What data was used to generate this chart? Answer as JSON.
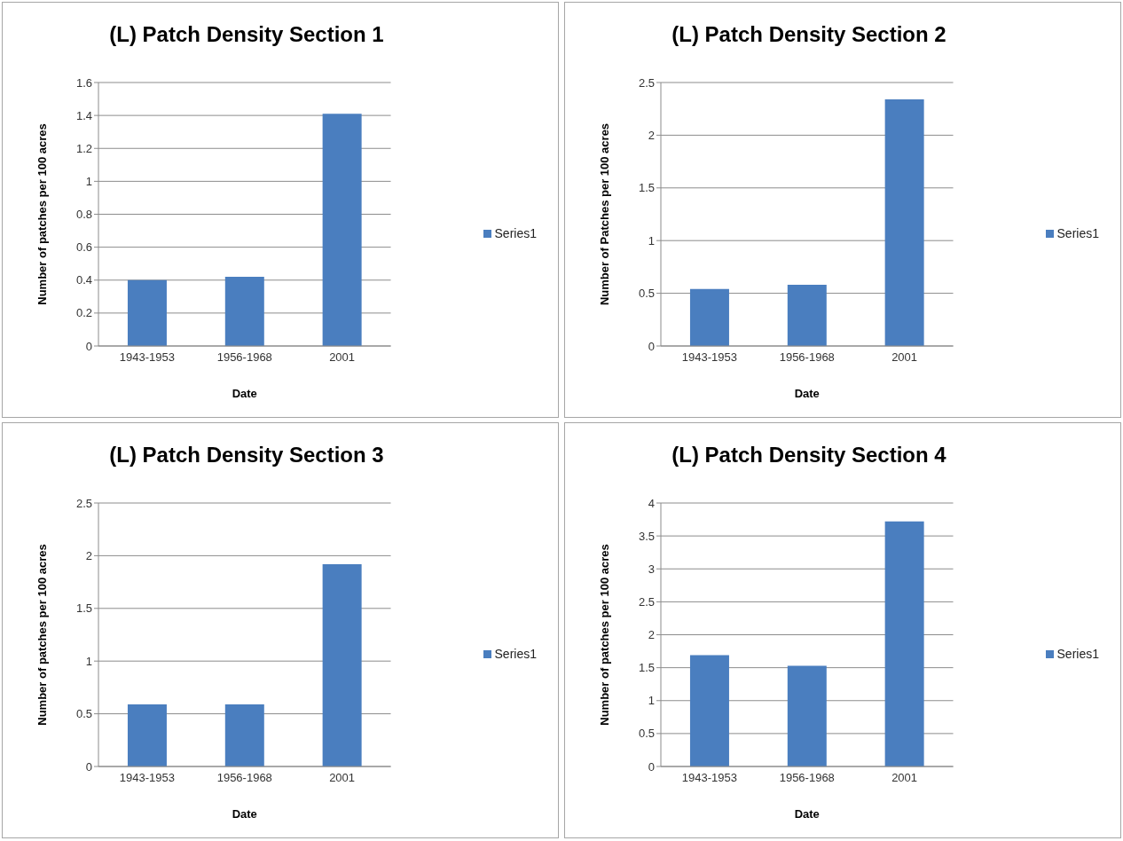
{
  "chart_data": [
    {
      "type": "bar",
      "title": "(L) Patch Density Section 1",
      "xlabel": "Date",
      "ylabel": "Number of patches per 100 acres",
      "categories": [
        "1943-1953",
        "1956-1968",
        "2001"
      ],
      "series": [
        {
          "name": "Series1",
          "color": "#4a7ebf",
          "values": [
            0.4,
            0.42,
            1.41
          ]
        }
      ],
      "ylim": [
        0,
        1.6
      ],
      "yticks": [
        0,
        0.2,
        0.4,
        0.6,
        0.8,
        1,
        1.2,
        1.4,
        1.6
      ],
      "grid": "y",
      "legend": "right"
    },
    {
      "type": "bar",
      "title": "(L) Patch Density Section 2",
      "xlabel": "Date",
      "ylabel": "Number of Patches per 100 acres",
      "categories": [
        "1943-1953",
        "1956-1968",
        "2001"
      ],
      "series": [
        {
          "name": "Series1",
          "color": "#4a7ebf",
          "values": [
            0.54,
            0.58,
            2.34
          ]
        }
      ],
      "ylim": [
        0,
        2.5
      ],
      "yticks": [
        0,
        0.5,
        1,
        1.5,
        2,
        2.5
      ],
      "grid": "y",
      "legend": "right"
    },
    {
      "type": "bar",
      "title": "(L) Patch Density Section 3",
      "xlabel": "Date",
      "ylabel": "Number of patches per 100 acres",
      "categories": [
        "1943-1953",
        "1956-1968",
        "2001"
      ],
      "series": [
        {
          "name": "Series1",
          "color": "#4a7ebf",
          "values": [
            0.59,
            0.59,
            1.92
          ]
        }
      ],
      "ylim": [
        0,
        2.5
      ],
      "yticks": [
        0,
        0.5,
        1,
        1.5,
        2,
        2.5
      ],
      "grid": "y",
      "legend": "right"
    },
    {
      "type": "bar",
      "title": "(L) Patch Density Section 4",
      "xlabel": "Date",
      "ylabel": "Number of patches per 100 acres",
      "categories": [
        "1943-1953",
        "1956-1968",
        "2001"
      ],
      "series": [
        {
          "name": "Series1",
          "color": "#4a7ebf",
          "values": [
            1.69,
            1.53,
            3.72
          ]
        }
      ],
      "ylim": [
        0,
        4
      ],
      "yticks": [
        0,
        0.5,
        1,
        1.5,
        2,
        2.5,
        3,
        3.5,
        4
      ],
      "grid": "y",
      "legend": "right"
    }
  ]
}
